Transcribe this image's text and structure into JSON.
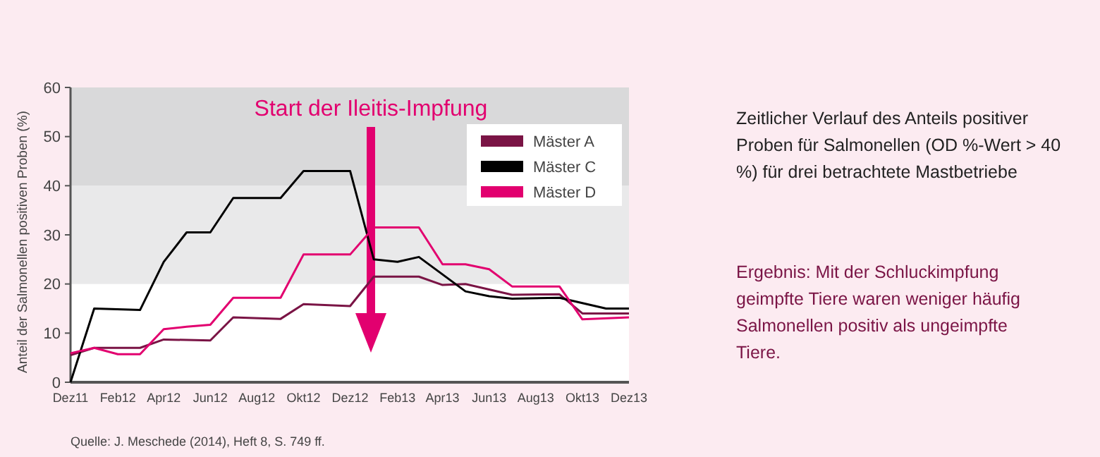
{
  "chart_data": {
    "type": "line",
    "ylabel": "Anteil der Salmonellen positiven Proben (%)",
    "series": [
      {
        "name": "Mäster A",
        "color": "#7a1445",
        "x": [
          "2011-12",
          "2012-01",
          "2012-03",
          "2012-04",
          "2012-06",
          "2012-07",
          "2012-09",
          "2012-10",
          "2012-12",
          "2013-01",
          "2013-03",
          "2013-04",
          "2013-05",
          "2013-07",
          "2013-09",
          "2013-10",
          "2013-12"
        ],
        "values": [
          5.5,
          7,
          7,
          8.7,
          8.5,
          13.2,
          12.9,
          15.9,
          15.5,
          21.5,
          21.5,
          19.8,
          20,
          17.8,
          17.9,
          14,
          14
        ]
      },
      {
        "name": "Mäster C",
        "color": "#000000",
        "x": [
          "2011-12",
          "2012-01",
          "2012-03",
          "2012-04",
          "2012-05",
          "2012-06",
          "2012-07",
          "2012-09",
          "2012-10",
          "2012-12",
          "2013-01",
          "2013-02",
          "2013-03",
          "2013-05",
          "2013-06",
          "2013-07",
          "2013-09",
          "2013-11",
          "2013-12"
        ],
        "values": [
          0,
          15,
          14.7,
          24.5,
          30.5,
          30.5,
          37.5,
          37.5,
          43,
          43,
          25,
          24.5,
          25.5,
          18.5,
          17.5,
          17,
          17.2,
          15,
          15
        ]
      },
      {
        "name": "Mäster D",
        "color": "#e2006f",
        "x": [
          "2011-12",
          "2012-01",
          "2012-02",
          "2012-03",
          "2012-04",
          "2012-05",
          "2012-06",
          "2012-07",
          "2012-09",
          "2012-10",
          "2012-12",
          "2013-01",
          "2013-03",
          "2013-04",
          "2013-05",
          "2013-06",
          "2013-07",
          "2013-09",
          "2013-10",
          "2013-12"
        ],
        "values": [
          5.9,
          7,
          5.7,
          5.7,
          10.8,
          11.3,
          11.7,
          17.2,
          17.2,
          26,
          26,
          31.5,
          31.5,
          24,
          24,
          23,
          19.5,
          19.5,
          12.8,
          13.2
        ]
      }
    ],
    "xlim": [
      "2011-12",
      "2013-12"
    ],
    "xticks": [
      {
        "value": "2011-12",
        "label": "Dez11"
      },
      {
        "value": "2012-02",
        "label": "Feb12"
      },
      {
        "value": "2012-04",
        "label": "Apr12"
      },
      {
        "value": "2012-06",
        "label": "Jun12"
      },
      {
        "value": "2012-08",
        "label": "Aug12"
      },
      {
        "value": "2012-10",
        "label": "Okt12"
      },
      {
        "value": "2012-12",
        "label": "Dez12"
      },
      {
        "value": "2013-02",
        "label": "Feb13"
      },
      {
        "value": "2013-04",
        "label": "Apr13"
      },
      {
        "value": "2013-06",
        "label": "Jun13"
      },
      {
        "value": "2013-08",
        "label": "Aug13"
      },
      {
        "value": "2013-10",
        "label": "Okt13"
      },
      {
        "value": "2013-12",
        "label": "Dez13"
      }
    ],
    "ylim": [
      0,
      60
    ],
    "yticks": [
      0,
      10,
      20,
      30,
      40,
      50,
      60
    ],
    "bands": [
      {
        "axis": "y",
        "from": 20,
        "to": 40,
        "color": "#e9e9ea"
      },
      {
        "axis": "y",
        "from": 40,
        "to": 60,
        "color": "#d9d9da"
      }
    ],
    "legend": "top right",
    "grid": false,
    "marker": "none",
    "line_style": "solid",
    "annotations": [
      "Start der Ileitis-Impfung",
      "Zeitlicher Verlauf des Anteils positiver Proben für Salmonellen (OD %-Wert > 40 %) für drei betrachtete Mastbetriebe",
      "Ergebnis: Mit der Schluckimpfung geimpfte Tiere waren weniger häufig Salmonellen positiv als ungeimpfte Tiere.",
      "Quelle: J. Meschede (2014), Heft 8, S. 749 ff."
    ]
  }
}
